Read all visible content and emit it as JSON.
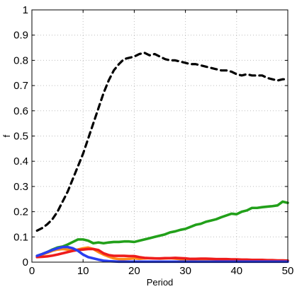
{
  "chart_data": {
    "type": "line",
    "title": "",
    "xlabel": "Period",
    "ylabel": "f",
    "xlim": [
      0,
      50
    ],
    "ylim": [
      0,
      1
    ],
    "xticks": [
      0,
      10,
      20,
      30,
      40,
      50
    ],
    "yticks": [
      0,
      0.1,
      0.2,
      0.3,
      0.4,
      0.5,
      0.6,
      0.7,
      0.8,
      0.9,
      1
    ],
    "xtick_labels": [
      "0",
      "10",
      "20",
      "30",
      "40",
      "50"
    ],
    "ytick_labels": [
      "0",
      "0.1",
      "0.2",
      "0.3",
      "0.4",
      "0.5",
      "0.6",
      "0.7",
      "0.8",
      "0.9",
      "1"
    ],
    "grid": true,
    "legend": "none",
    "series": [
      {
        "color": "#000000",
        "style": "dashed",
        "x": [
          1,
          2,
          3,
          4,
          5,
          6,
          7,
          8,
          9,
          10,
          11,
          12,
          13,
          14,
          15,
          16,
          17,
          18,
          19,
          20,
          21,
          22,
          23,
          24,
          25,
          26,
          27,
          28,
          29,
          30,
          31,
          32,
          33,
          34,
          35,
          36,
          37,
          38,
          39,
          40,
          41,
          42,
          43,
          44,
          45,
          46,
          47,
          48,
          49,
          50
        ],
        "values": [
          0.125,
          0.135,
          0.15,
          0.17,
          0.2,
          0.24,
          0.28,
          0.33,
          0.38,
          0.43,
          0.49,
          0.55,
          0.61,
          0.67,
          0.72,
          0.76,
          0.785,
          0.805,
          0.81,
          0.815,
          0.825,
          0.83,
          0.82,
          0.825,
          0.815,
          0.805,
          0.8,
          0.8,
          0.795,
          0.79,
          0.785,
          0.785,
          0.78,
          0.775,
          0.77,
          0.765,
          0.76,
          0.76,
          0.755,
          0.745,
          0.74,
          0.745,
          0.74,
          0.74,
          0.74,
          0.73,
          0.725,
          0.72,
          0.725,
          0.725
        ]
      },
      {
        "color": "#22a01a",
        "style": "solid",
        "x": [
          1,
          2,
          3,
          4,
          5,
          6,
          7,
          8,
          9,
          10,
          11,
          12,
          13,
          14,
          15,
          16,
          17,
          18,
          19,
          20,
          21,
          22,
          23,
          24,
          25,
          26,
          27,
          28,
          29,
          30,
          31,
          32,
          33,
          34,
          35,
          36,
          37,
          38,
          39,
          40,
          41,
          42,
          43,
          44,
          45,
          46,
          47,
          48,
          49,
          50
        ],
        "values": [
          0.025,
          0.032,
          0.04,
          0.05,
          0.058,
          0.062,
          0.07,
          0.08,
          0.09,
          0.09,
          0.085,
          0.075,
          0.078,
          0.075,
          0.078,
          0.08,
          0.08,
          0.082,
          0.082,
          0.08,
          0.085,
          0.09,
          0.095,
          0.1,
          0.105,
          0.11,
          0.118,
          0.122,
          0.128,
          0.132,
          0.14,
          0.148,
          0.152,
          0.16,
          0.165,
          0.17,
          0.178,
          0.185,
          0.192,
          0.19,
          0.2,
          0.205,
          0.215,
          0.215,
          0.218,
          0.22,
          0.222,
          0.225,
          0.24,
          0.235
        ]
      },
      {
        "color": "#ff8a1a",
        "style": "solid",
        "x": [
          1,
          2,
          3,
          4,
          5,
          6,
          7,
          8,
          9,
          10,
          11,
          12,
          13,
          14,
          15,
          16,
          17,
          18,
          19,
          20,
          21,
          22,
          23,
          24,
          25,
          26,
          27,
          28,
          29,
          30,
          31,
          32,
          33,
          34,
          35,
          36,
          37,
          38,
          39,
          40,
          41,
          42,
          43,
          44,
          45,
          46,
          47,
          48,
          49,
          50
        ],
        "values": [
          0.025,
          0.03,
          0.037,
          0.045,
          0.05,
          0.052,
          0.05,
          0.047,
          0.05,
          0.055,
          0.058,
          0.052,
          0.04,
          0.03,
          0.022,
          0.015,
          0.012,
          0.012,
          0.013,
          0.015,
          0.013,
          0.015,
          0.016,
          0.015,
          0.014,
          0.015,
          0.016,
          0.014,
          0.012,
          0.01,
          0.01,
          0.01,
          0.01,
          0.01,
          0.009,
          0.009,
          0.009,
          0.008,
          0.008,
          0.008,
          0.007,
          0.007,
          0.007,
          0.007,
          0.006,
          0.006,
          0.006,
          0.005,
          0.005,
          0.005
        ]
      },
      {
        "color": "#ee1c1c",
        "style": "solid",
        "x": [
          1,
          2,
          3,
          4,
          5,
          6,
          7,
          8,
          9,
          10,
          11,
          12,
          13,
          14,
          15,
          16,
          17,
          18,
          19,
          20,
          21,
          22,
          23,
          24,
          25,
          26,
          27,
          28,
          29,
          30,
          31,
          32,
          33,
          34,
          35,
          36,
          37,
          38,
          39,
          40,
          41,
          42,
          43,
          44,
          45,
          46,
          47,
          48,
          49,
          50
        ],
        "values": [
          0.02,
          0.021,
          0.023,
          0.026,
          0.03,
          0.035,
          0.04,
          0.045,
          0.048,
          0.05,
          0.052,
          0.052,
          0.048,
          0.035,
          0.028,
          0.025,
          0.025,
          0.025,
          0.024,
          0.024,
          0.02,
          0.017,
          0.016,
          0.015,
          0.015,
          0.016,
          0.016,
          0.017,
          0.016,
          0.015,
          0.013,
          0.013,
          0.014,
          0.014,
          0.013,
          0.012,
          0.012,
          0.012,
          0.011,
          0.011,
          0.01,
          0.01,
          0.009,
          0.009,
          0.009,
          0.008,
          0.008,
          0.007,
          0.007,
          0.006
        ]
      },
      {
        "color": "#2a3ff0",
        "style": "solid",
        "x": [
          1,
          2,
          3,
          4,
          5,
          6,
          7,
          8,
          9,
          10,
          11,
          12,
          13,
          14,
          15,
          16,
          17,
          18,
          19,
          20,
          21,
          22,
          23,
          24,
          25,
          26,
          27,
          28,
          29,
          30,
          31,
          32,
          33,
          34,
          35,
          36,
          37,
          38,
          39,
          40,
          41,
          42,
          43,
          44,
          45,
          46,
          47,
          48,
          49,
          50
        ],
        "values": [
          0.025,
          0.032,
          0.04,
          0.048,
          0.055,
          0.06,
          0.06,
          0.055,
          0.045,
          0.03,
          0.02,
          0.015,
          0.01,
          0.006,
          0.004,
          0.003,
          0.002,
          0.002,
          0.002,
          0.002,
          0.002,
          0.002,
          0.002,
          0.002,
          0.002,
          0.002,
          0.002,
          0.002,
          0.002,
          0.002,
          0.002,
          0.002,
          0.002,
          0.002,
          0.002,
          0.002,
          0.002,
          0.002,
          0.002,
          0.002,
          0.002,
          0.002,
          0.002,
          0.002,
          0.002,
          0.002,
          0.002,
          0.002,
          0.002,
          0.002
        ]
      }
    ]
  }
}
